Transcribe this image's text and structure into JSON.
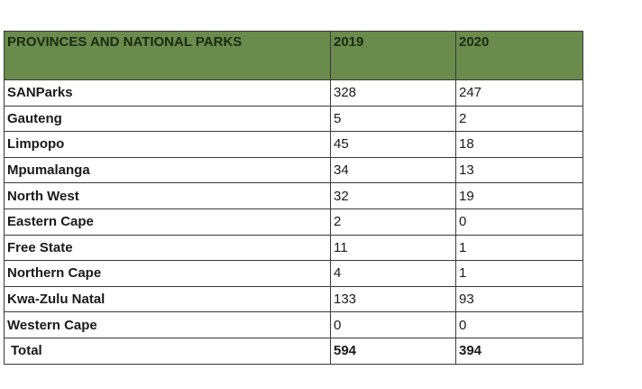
{
  "table": {
    "headers": [
      "PROVINCES AND NATIONAL PARKS",
      "2019",
      "2020"
    ],
    "rows": [
      {
        "label": "SANParks",
        "y2019": "328",
        "y2020": "247"
      },
      {
        "label": "Gauteng",
        "y2019": "5",
        "y2020": "2"
      },
      {
        "label": "Limpopo",
        "y2019": "45",
        "y2020": "18"
      },
      {
        "label": "Mpumalanga",
        "y2019": "34",
        "y2020": "13"
      },
      {
        "label": "North West",
        "y2019": "32",
        "y2020": "19"
      },
      {
        "label": "Eastern Cape",
        "y2019": "2",
        "y2020": "0"
      },
      {
        "label": "Free State",
        "y2019": "11",
        "y2020": "1"
      },
      {
        "label": "Northern Cape",
        "y2019": "4",
        "y2020": "1"
      },
      {
        "label": "Kwa-Zulu Natal",
        "y2019": "133",
        "y2020": "93"
      },
      {
        "label": "Western Cape",
        "y2019": "0",
        "y2020": "0"
      }
    ],
    "total": {
      "label": "Total",
      "y2019": "594",
      "y2020": "394"
    }
  },
  "colors": {
    "header_bg": "#6b8b4c",
    "border": "#3a3a3a"
  }
}
